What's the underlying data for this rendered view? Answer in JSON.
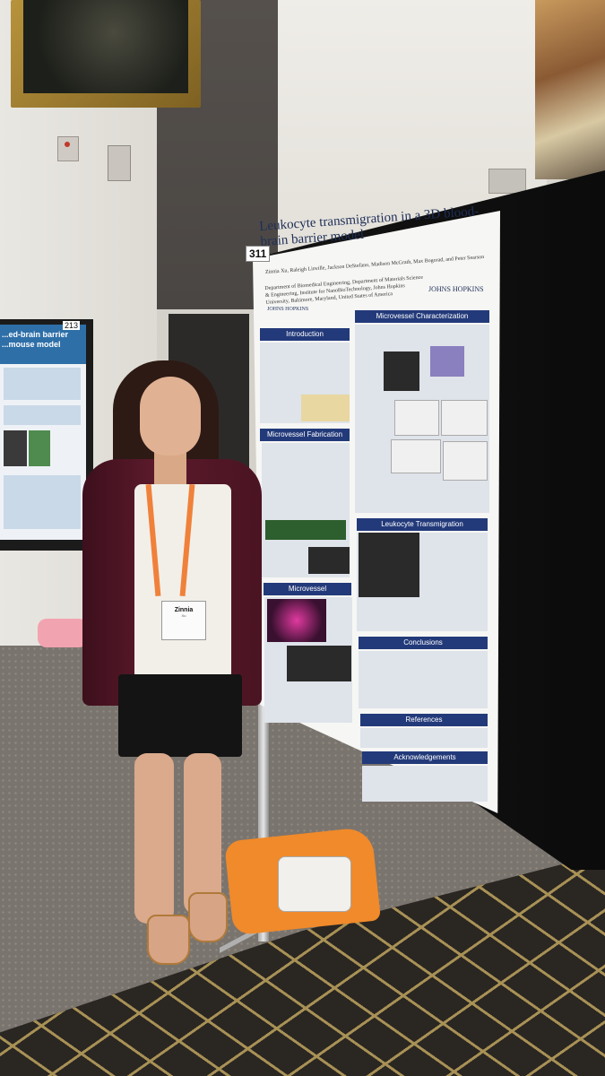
{
  "scene": {
    "description_free": true
  },
  "left_poster": {
    "number": "213",
    "title": "...ed-brain barrier ...mouse model"
  },
  "main_poster": {
    "number": "311",
    "title": "Leukocyte transmigration in a 3D blood-brain barrier model",
    "authors": "Zinnia Xu, Raleigh Linville, Jackson DeStefano, Madison McGrath, Max Bogorad, and Peter Searson",
    "affiliation": "Department of Biomedical Engineering, Department of Materials Science & Engineering, Institute for NanoBioTechnology, Johns Hopkins University, Baltimore, Maryland, United States of America",
    "logo": "JOHNS HOPKINS",
    "sections": {
      "introduction": "Introduction",
      "fabrication": "Microvessel Fabrication",
      "characterization_left": "Microvessel Characterization",
      "characterization_right": "Microvessel Characterization",
      "transmigration": "Leukocyte Transmigration",
      "conclusions": "Conclusions",
      "references": "References",
      "acknowledgements": "Acknowledgements"
    }
  },
  "badge": {
    "name": "Zinnia",
    "surname": "Xu"
  },
  "colors": {
    "poster_header": "#233a7a",
    "lanyard": "#f0813a",
    "blazer": "#5b1a2b"
  }
}
